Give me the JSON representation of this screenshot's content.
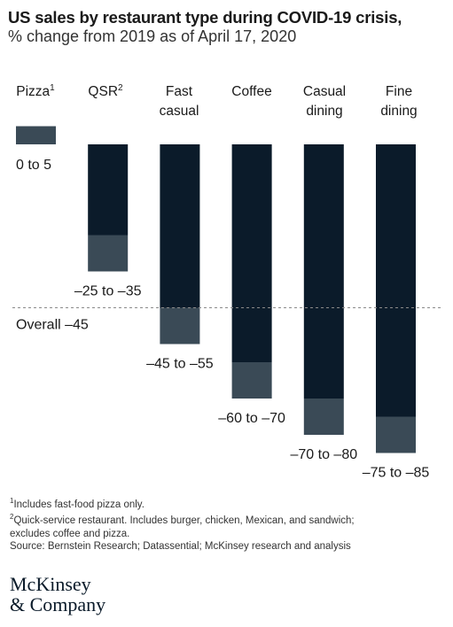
{
  "header": {
    "title": "US sales by restaurant type during COVID-19 crisis,",
    "subtitle": "% change from 2019 as of April 17, 2020"
  },
  "chart_data": {
    "type": "bar",
    "title": "US sales by restaurant type during COVID-19 crisis,",
    "subtitle": "% change from 2019 as of April 17, 2020",
    "categories": [
      {
        "lines": [
          "Pizza"
        ],
        "sup": "1"
      },
      {
        "lines": [
          "QSR"
        ],
        "sup": "2"
      },
      {
        "lines": [
          "Fast",
          "casual"
        ],
        "sup": ""
      },
      {
        "lines": [
          "Coffee"
        ],
        "sup": ""
      },
      {
        "lines": [
          "Casual",
          "dining"
        ],
        "sup": ""
      },
      {
        "lines": [
          "Fine",
          "dining"
        ],
        "sup": ""
      }
    ],
    "series": [
      {
        "low": 0,
        "high": 5,
        "label": "0 to 5"
      },
      {
        "low": -35,
        "high": -25,
        "label": "–25 to –35"
      },
      {
        "low": -55,
        "high": -45,
        "label": "–45 to –55"
      },
      {
        "low": -70,
        "high": -60,
        "label": "–60 to –70"
      },
      {
        "low": -80,
        "high": -70,
        "label": "–70 to –80"
      },
      {
        "low": -85,
        "high": -75,
        "label": "–75 to –85"
      }
    ],
    "overall": {
      "value": -45,
      "label": "Overall –45"
    },
    "colors": {
      "solid": "#0b1b2a",
      "range": "#3a4a56",
      "reference": "#8a8a8a"
    }
  },
  "footnotes": {
    "note1": "Includes fast-food pizza only.",
    "note2a": "Quick-service restaurant. Includes burger, chicken, Mexican, and sandwich;",
    "note2b": "excludes coffee and pizza.",
    "source": "Source: Bernstein Research; Datassential; McKinsey research and analysis"
  },
  "logo": {
    "line1": "McKinsey",
    "line2": "& Company"
  }
}
